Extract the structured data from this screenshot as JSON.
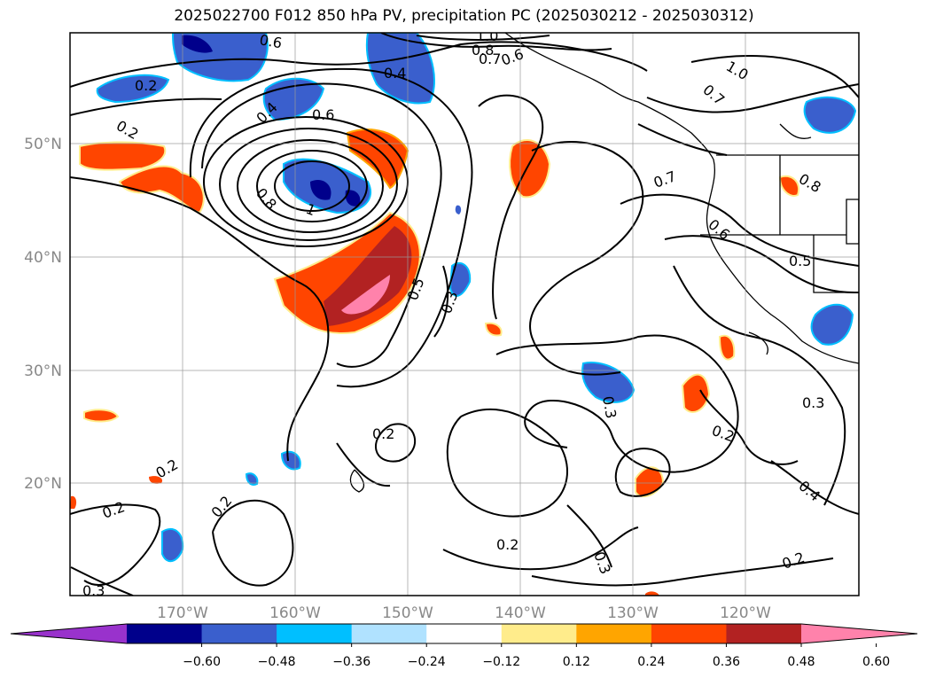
{
  "title": "2025022700 F012 850 hPa PV, precipitation PC (2025030212 - 2025030312)",
  "lat_labels": [
    "50°N",
    "40°N",
    "30°N",
    "20°N"
  ],
  "lon_labels": [
    "170°W",
    "160°W",
    "150°W",
    "140°W",
    "130°W",
    "120°W"
  ],
  "colorbar": {
    "tick_labels": [
      "−0.60",
      "−0.48",
      "−0.36",
      "−0.24",
      "−0.12",
      "0.12",
      "0.24",
      "0.36",
      "0.48",
      "0.60"
    ],
    "colors": [
      "#9932cc",
      "#00008b",
      "#3a5fcd",
      "#00bfff",
      "#b0e2ff",
      "#ffffff",
      "#ffec8b",
      "#ffa500",
      "#ff4500",
      "#b22222",
      "#ff82ab"
    ]
  },
  "contour_labels": [
    "0.6",
    "1.0",
    "0.8",
    "0.7",
    "0.6",
    "0.2",
    "0.4",
    "0.2",
    "0.4",
    "0.6",
    "0.8",
    "1",
    "0.5",
    "0.3",
    "0.2",
    "0.2",
    "0.2",
    "0.2",
    "0.2",
    "0.3",
    "0.2",
    "0.4",
    "0.2",
    "0.7",
    "0.6",
    "0.5",
    "1.0",
    "0.7",
    "0.3",
    "0.3",
    "0.8",
    "0.3"
  ]
}
